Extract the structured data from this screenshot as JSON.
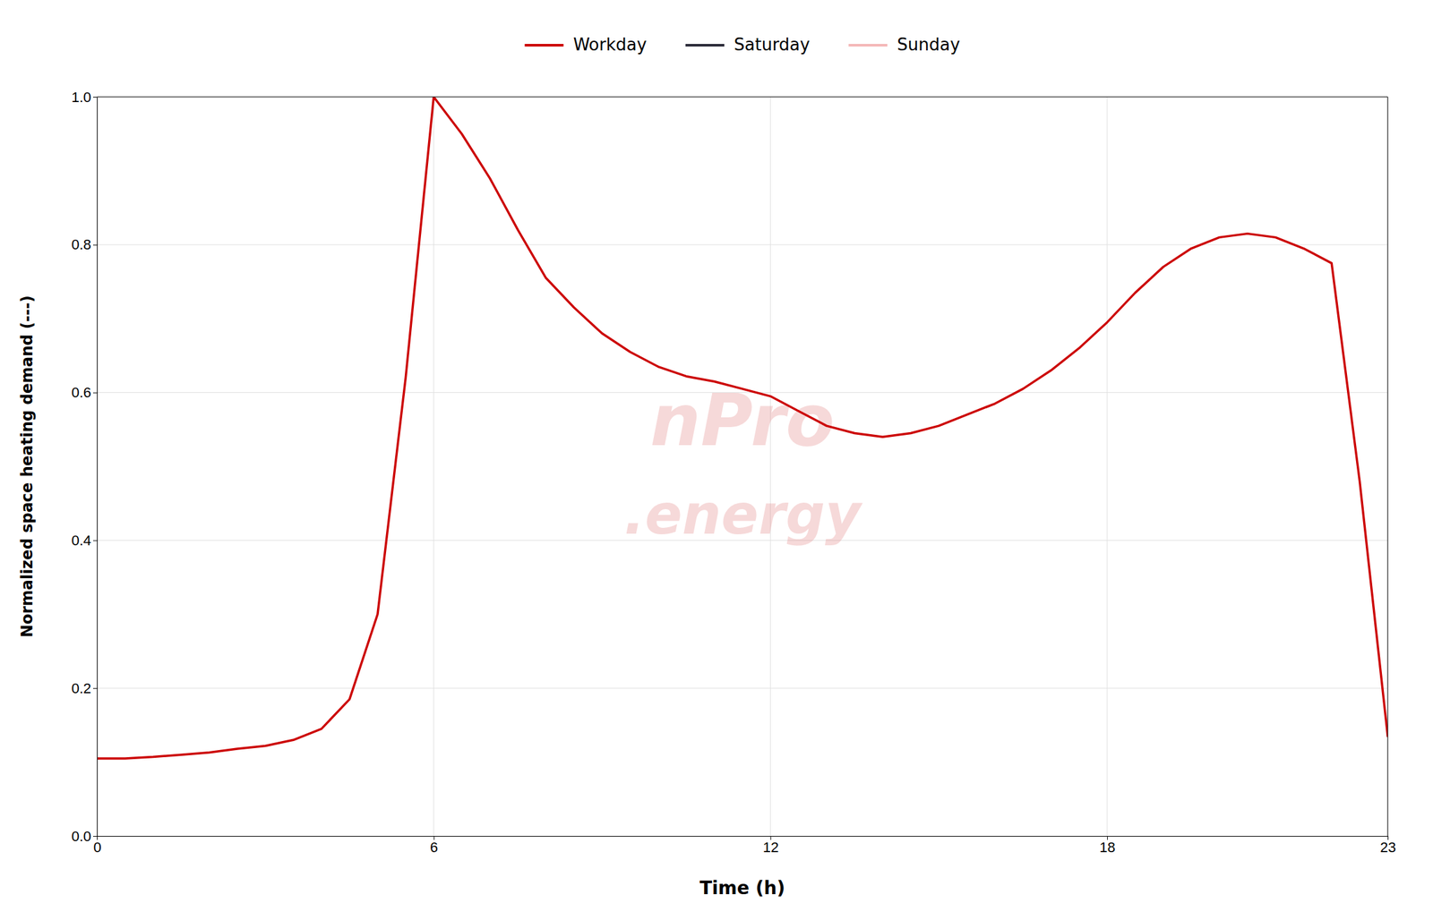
{
  "chart_data": {
    "type": "line",
    "title": "",
    "xlabel": "Time (h)",
    "ylabel": "Normalized space heating demand (---)",
    "xlim": [
      0,
      23
    ],
    "ylim": [
      0.0,
      1.0
    ],
    "xticks": [
      0,
      6,
      12,
      18,
      23
    ],
    "yticks": [
      {
        "value": 0.0,
        "label": "0.0"
      },
      0.2,
      0.4,
      0.6,
      0.8,
      {
        "value": 1.0,
        "label": "1.0"
      }
    ],
    "grid": true,
    "legend": "top",
    "x": [
      0,
      0.5,
      1,
      1.5,
      2,
      2.5,
      3,
      3.5,
      4,
      4.5,
      5,
      5.5,
      6,
      6.5,
      7,
      7.5,
      8,
      8.5,
      9,
      9.5,
      10,
      10.5,
      11,
      11.5,
      12,
      12.5,
      13,
      13.5,
      14,
      14.5,
      15,
      15.5,
      16,
      16.5,
      17,
      17.5,
      18,
      18.5,
      19,
      19.5,
      20,
      20.5,
      21,
      21.5,
      22,
      22.5,
      23
    ],
    "series": [
      {
        "name": "Workday",
        "color": "#cc0000",
        "values": [
          0.105,
          0.105,
          0.107,
          0.11,
          0.113,
          0.118,
          0.122,
          0.13,
          0.145,
          0.185,
          0.3,
          0.62,
          1.0,
          0.95,
          0.89,
          0.82,
          0.755,
          0.715,
          0.68,
          0.655,
          0.635,
          0.622,
          0.615,
          0.605,
          0.595,
          0.575,
          0.555,
          0.545,
          0.54,
          0.545,
          0.555,
          0.57,
          0.585,
          0.605,
          0.63,
          0.66,
          0.695,
          0.735,
          0.77,
          0.795,
          0.81,
          0.815,
          0.81,
          0.795,
          0.775,
          0.48,
          0.135
        ]
      },
      {
        "name": "Saturday",
        "color": "#2d2d3a",
        "values": [
          null,
          null,
          null,
          null,
          null,
          null,
          null,
          null,
          null,
          null,
          null,
          null,
          null,
          null,
          null,
          null,
          null,
          null,
          null,
          null,
          null,
          null,
          null,
          null,
          null,
          null,
          null,
          null,
          null,
          null,
          null,
          null,
          null,
          null,
          null,
          null,
          null,
          null,
          null,
          null,
          null,
          null,
          null,
          null,
          null,
          null,
          null
        ]
      },
      {
        "name": "Sunday",
        "color": "#f4b8b8",
        "values": [
          null,
          null,
          null,
          null,
          null,
          null,
          null,
          null,
          null,
          null,
          null,
          null,
          null,
          null,
          null,
          null,
          null,
          null,
          null,
          null,
          null,
          null,
          null,
          null,
          null,
          null,
          null,
          null,
          null,
          null,
          null,
          null,
          null,
          null,
          null,
          null,
          null,
          null,
          null,
          null,
          null,
          null,
          null,
          null,
          null,
          null,
          null
        ]
      }
    ],
    "annotations": [
      {
        "text": "nPro",
        "color": "#e08080"
      },
      {
        "text": ".energy",
        "color": "#e08080"
      }
    ]
  }
}
